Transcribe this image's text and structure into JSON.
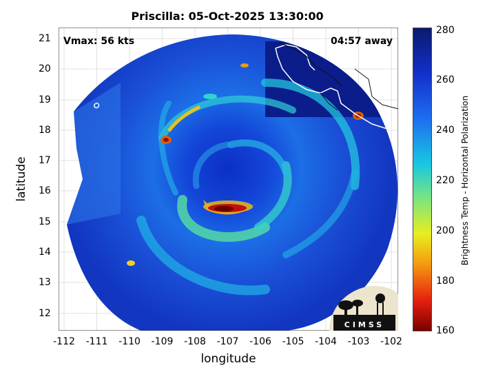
{
  "title": "Priscilla: 05-Oct-2025 13:30:00",
  "vmax_label": "Vmax: 56 kts",
  "away_label": "04:57 away",
  "colorbar_label": "Brightness Temp - Horizontal Polarization",
  "colorbar_ticks": [
    "280",
    "260",
    "240",
    "220",
    "200",
    "180",
    "160"
  ],
  "colorbar_range": [
    160,
    280
  ],
  "logo_text": "CIMSS",
  "map": {
    "xlabel": "longitude",
    "ylabel": "latitude",
    "x_ticks": [
      "-112",
      "-111",
      "-110",
      "-109",
      "-108",
      "-107",
      "-106",
      "-105",
      "-104",
      "-103",
      "-102"
    ],
    "y_ticks": [
      "21",
      "20",
      "19",
      "18",
      "17",
      "16",
      "15",
      "14",
      "13",
      "12"
    ],
    "lon_range": [
      -112.1,
      -101.8
    ],
    "lat_range": [
      11.6,
      21.3
    ],
    "grid": true,
    "storm_center": [
      -107.05,
      16.35
    ]
  }
}
